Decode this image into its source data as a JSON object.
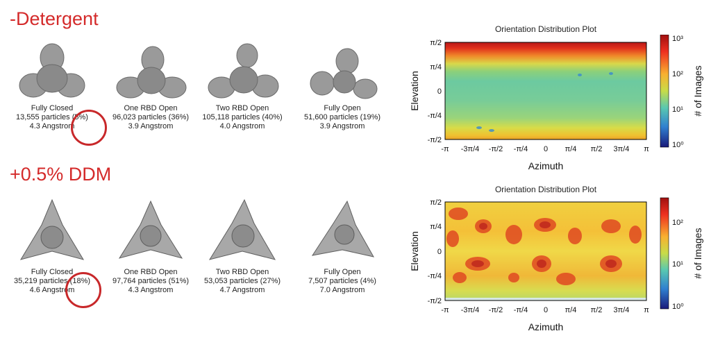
{
  "sections": [
    {
      "title": "-Detergent",
      "structures": [
        {
          "name": "Fully Closed",
          "particles": "13,555 particles (5%)",
          "resolution": "4.3 Angstrom"
        },
        {
          "name": "One RBD Open",
          "particles": "96,023 particles (36%)",
          "resolution": "3.9 Angstrom"
        },
        {
          "name": "Two RBD Open",
          "particles": "105,118 particles (40%)",
          "resolution": "4.0 Angstrom"
        },
        {
          "name": "Fully Open",
          "particles": "51,600 particles (19%)",
          "resolution": "3.9 Angstrom"
        }
      ],
      "plot": {
        "title": "Orientation Distribution Plot",
        "xlabel": "Azimuth",
        "ylabel": "Elevation",
        "colorbar_label": "# of Images",
        "x_ticks": [
          "-π",
          "-3π/4",
          "-π/2",
          "-π/4",
          "0",
          "π/4",
          "π/2",
          "3π/4",
          "π"
        ],
        "y_ticks": [
          "π/2",
          "π/4",
          "0",
          "-π/4",
          "-π/2"
        ],
        "colorbar_ticks": [
          "10³",
          "10²",
          "10¹",
          "10⁰"
        ]
      }
    },
    {
      "title": "+0.5% DDM",
      "structures": [
        {
          "name": "Fully Closed",
          "particles": "35,219 particles (18%)",
          "resolution": "4.6 Angstrom"
        },
        {
          "name": "One RBD Open",
          "particles": "97,764 particles (51%)",
          "resolution": "4.3 Angstrom"
        },
        {
          "name": "Two RBD Open",
          "particles": "53,053 particles (27%)",
          "resolution": "4.7 Angstrom"
        },
        {
          "name": "Fully Open",
          "particles": "7,507 particles (4%)",
          "resolution": "7.0 Angstrom"
        }
      ],
      "plot": {
        "title": "Orientation Distribution Plot",
        "xlabel": "Azimuth",
        "ylabel": "Elevation",
        "colorbar_label": "# of Images",
        "x_ticks": [
          "-π",
          "-3π/4",
          "-π/2",
          "-π/4",
          "0",
          "π/4",
          "π/2",
          "3π/4",
          "π"
        ],
        "y_ticks": [
          "π/2",
          "π/4",
          "0",
          "-π/4",
          "-π/2"
        ],
        "colorbar_ticks": [
          "10²",
          "10¹",
          "10⁰"
        ]
      }
    }
  ],
  "highlight_color": "#c8282a"
}
